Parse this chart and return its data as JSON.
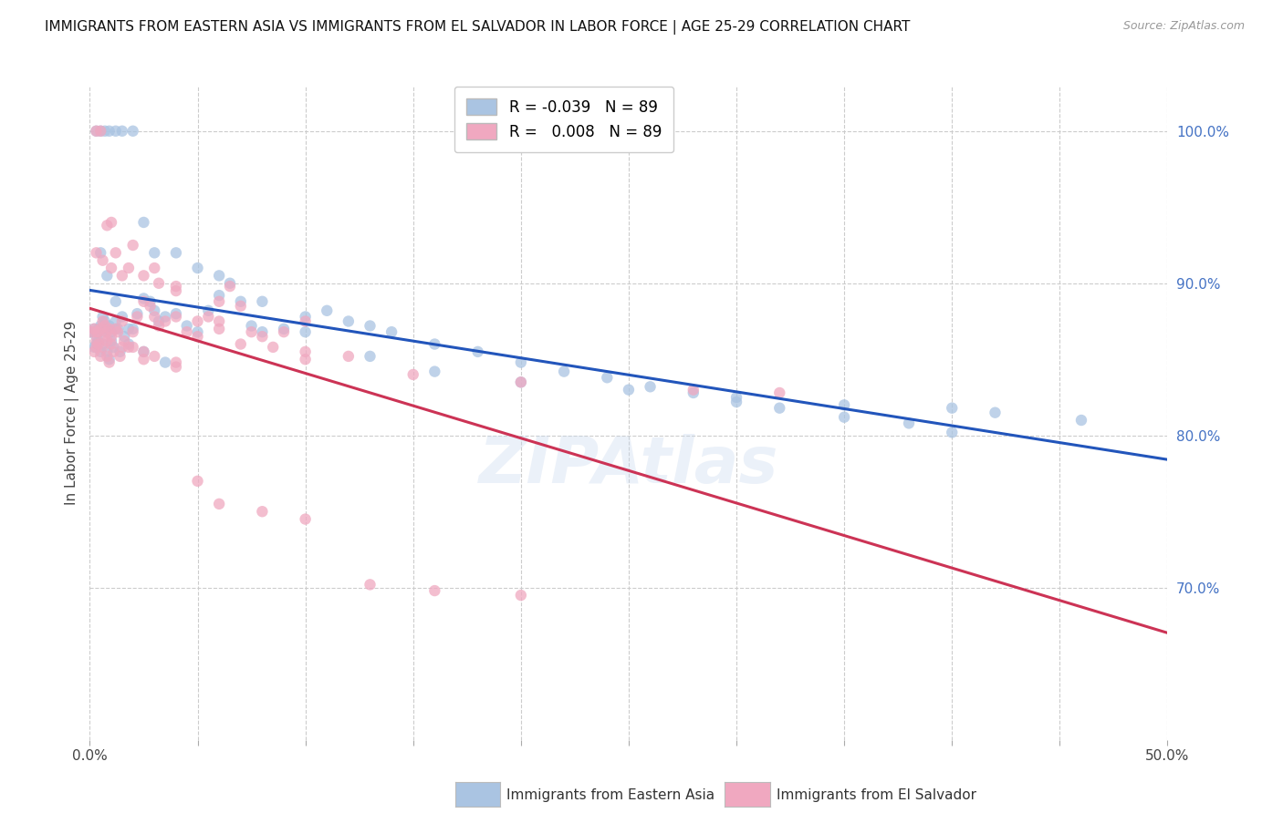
{
  "title": "IMMIGRANTS FROM EASTERN ASIA VS IMMIGRANTS FROM EL SALVADOR IN LABOR FORCE | AGE 25-29 CORRELATION CHART",
  "source": "Source: ZipAtlas.com",
  "ylabel": "In Labor Force | Age 25-29",
  "xlim": [
    0.0,
    0.5
  ],
  "ylim": [
    0.6,
    1.03
  ],
  "legend_r_blue": "-0.039",
  "legend_r_pink": " 0.008",
  "legend_n": "89",
  "blue_color": "#aac4e2",
  "pink_color": "#f0a8c0",
  "blue_line_color": "#2255bb",
  "pink_line_color": "#cc3355",
  "scatter_alpha": 0.75,
  "scatter_size": 80,
  "blue_x": [
    0.001,
    0.002,
    0.002,
    0.003,
    0.003,
    0.004,
    0.004,
    0.005,
    0.005,
    0.006,
    0.006,
    0.007,
    0.007,
    0.008,
    0.008,
    0.009,
    0.009,
    0.01,
    0.01,
    0.011,
    0.012,
    0.013,
    0.014,
    0.015,
    0.016,
    0.018,
    0.02,
    0.022,
    0.025,
    0.028,
    0.03,
    0.032,
    0.035,
    0.04,
    0.045,
    0.05,
    0.055,
    0.06,
    0.065,
    0.07,
    0.075,
    0.08,
    0.09,
    0.1,
    0.11,
    0.12,
    0.13,
    0.14,
    0.16,
    0.18,
    0.2,
    0.22,
    0.24,
    0.26,
    0.28,
    0.3,
    0.32,
    0.35,
    0.38,
    0.4,
    0.003,
    0.005,
    0.007,
    0.009,
    0.012,
    0.015,
    0.02,
    0.025,
    0.03,
    0.04,
    0.05,
    0.06,
    0.08,
    0.1,
    0.13,
    0.16,
    0.2,
    0.25,
    0.3,
    0.35,
    0.4,
    0.42,
    0.46,
    0.005,
    0.008,
    0.012,
    0.018,
    0.025,
    0.035
  ],
  "blue_y": [
    0.868,
    0.87,
    0.858,
    0.865,
    0.86,
    0.862,
    0.87,
    0.872,
    0.855,
    0.878,
    0.86,
    0.875,
    0.868,
    0.855,
    0.87,
    0.872,
    0.85,
    0.868,
    0.862,
    0.858,
    0.875,
    0.87,
    0.855,
    0.878,
    0.865,
    0.86,
    0.87,
    0.88,
    0.89,
    0.888,
    0.882,
    0.875,
    0.878,
    0.88,
    0.872,
    0.868,
    0.882,
    0.892,
    0.9,
    0.888,
    0.872,
    0.868,
    0.87,
    0.878,
    0.882,
    0.875,
    0.872,
    0.868,
    0.86,
    0.855,
    0.848,
    0.842,
    0.838,
    0.832,
    0.828,
    0.822,
    0.818,
    0.812,
    0.808,
    0.802,
    1.0,
    1.0,
    1.0,
    1.0,
    1.0,
    1.0,
    1.0,
    0.94,
    0.92,
    0.92,
    0.91,
    0.905,
    0.888,
    0.868,
    0.852,
    0.842,
    0.835,
    0.83,
    0.825,
    0.82,
    0.818,
    0.815,
    0.81,
    0.92,
    0.905,
    0.888,
    0.87,
    0.855,
    0.848
  ],
  "pink_x": [
    0.001,
    0.002,
    0.002,
    0.003,
    0.003,
    0.004,
    0.004,
    0.005,
    0.005,
    0.006,
    0.006,
    0.007,
    0.007,
    0.008,
    0.008,
    0.009,
    0.009,
    0.01,
    0.01,
    0.011,
    0.012,
    0.013,
    0.014,
    0.015,
    0.016,
    0.018,
    0.02,
    0.022,
    0.025,
    0.028,
    0.03,
    0.032,
    0.035,
    0.04,
    0.045,
    0.05,
    0.055,
    0.06,
    0.065,
    0.07,
    0.075,
    0.08,
    0.09,
    0.1,
    0.003,
    0.005,
    0.008,
    0.012,
    0.018,
    0.025,
    0.032,
    0.04,
    0.05,
    0.06,
    0.07,
    0.085,
    0.1,
    0.12,
    0.003,
    0.006,
    0.01,
    0.015,
    0.02,
    0.025,
    0.03,
    0.04,
    0.05,
    0.06,
    0.08,
    0.1,
    0.13,
    0.16,
    0.2,
    0.01,
    0.02,
    0.03,
    0.04,
    0.06,
    0.1,
    0.15,
    0.2,
    0.28,
    0.32,
    0.003,
    0.008,
    0.015,
    0.025,
    0.04
  ],
  "pink_y": [
    0.868,
    0.87,
    0.855,
    0.862,
    0.858,
    0.86,
    0.868,
    0.87,
    0.852,
    0.875,
    0.858,
    0.872,
    0.865,
    0.852,
    0.868,
    0.87,
    0.848,
    0.865,
    0.86,
    0.855,
    0.87,
    0.868,
    0.852,
    0.875,
    0.862,
    0.858,
    0.868,
    0.878,
    0.888,
    0.885,
    0.878,
    0.872,
    0.875,
    0.878,
    0.868,
    0.865,
    0.878,
    0.888,
    0.898,
    0.885,
    0.868,
    0.865,
    0.868,
    0.875,
    1.0,
    1.0,
    0.938,
    0.92,
    0.91,
    0.905,
    0.9,
    0.898,
    0.875,
    0.87,
    0.86,
    0.858,
    0.855,
    0.852,
    0.92,
    0.915,
    0.91,
    0.905,
    0.858,
    0.855,
    0.852,
    0.848,
    0.77,
    0.755,
    0.75,
    0.745,
    0.702,
    0.698,
    0.695,
    0.94,
    0.925,
    0.91,
    0.895,
    0.875,
    0.85,
    0.84,
    0.835,
    0.83,
    0.828,
    0.868,
    0.862,
    0.858,
    0.85,
    0.845
  ]
}
